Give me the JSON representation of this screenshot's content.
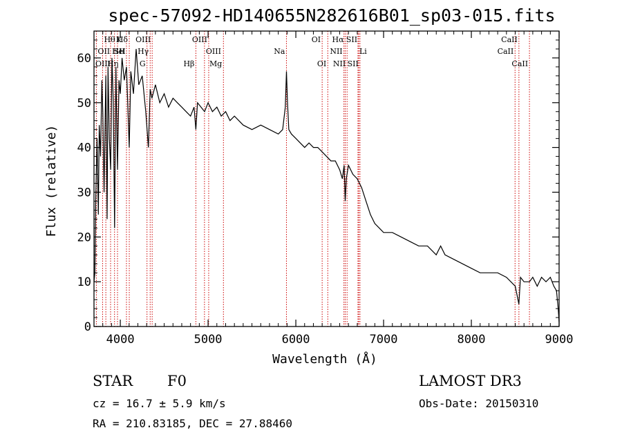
{
  "chart_data": {
    "type": "line",
    "title": "spec-57092-HD140655N282616B01_sp03-015.fits",
    "xlabel": "Wavelength (Å)",
    "ylabel": "Flux (relative)",
    "xlim": [
      3700,
      9000
    ],
    "ylim": [
      0,
      66
    ],
    "xticks": [
      4000,
      5000,
      6000,
      7000,
      8000,
      9000
    ],
    "yticks": [
      0,
      10,
      20,
      30,
      40,
      50,
      60
    ],
    "line_color": "#000000",
    "marker_color": "#cc0000",
    "series": [
      {
        "name": "Flux",
        "x": [
          3700,
          3710,
          3720,
          3735,
          3750,
          3760,
          3775,
          3790,
          3800,
          3815,
          3835,
          3850,
          3860,
          3875,
          3890,
          3905,
          3920,
          3935,
          3950,
          3968,
          3985,
          4000,
          4020,
          4045,
          4070,
          4102,
          4120,
          4150,
          4180,
          4210,
          4250,
          4290,
          4320,
          4340,
          4360,
          4400,
          4450,
          4500,
          4550,
          4600,
          4650,
          4700,
          4750,
          4800,
          4840,
          4861,
          4880,
          4920,
          4960,
          5000,
          5050,
          5100,
          5150,
          5200,
          5250,
          5300,
          5400,
          5500,
          5600,
          5700,
          5800,
          5850,
          5880,
          5893,
          5905,
          5920,
          5950,
          6000,
          6050,
          6100,
          6150,
          6200,
          6250,
          6300,
          6350,
          6400,
          6450,
          6500,
          6530,
          6550,
          6563,
          6575,
          6600,
          6650,
          6700,
          6750,
          6800,
          6850,
          6900,
          6950,
          7000,
          7100,
          7200,
          7300,
          7400,
          7500,
          7600,
          7650,
          7700,
          7800,
          7900,
          8000,
          8100,
          8200,
          8300,
          8400,
          8450,
          8500,
          8542,
          8560,
          8600,
          8662,
          8700,
          8750,
          8800,
          8850,
          8900,
          8940,
          8970,
          8990,
          9000
        ],
        "y": [
          10,
          12,
          28,
          42,
          25,
          45,
          38,
          55,
          48,
          30,
          56,
          24,
          58,
          42,
          35,
          60,
          50,
          22,
          58,
          35,
          55,
          52,
          60,
          55,
          58,
          40,
          57,
          52,
          62,
          54,
          56,
          48,
          40,
          53,
          51,
          54,
          50,
          52,
          49,
          51,
          50,
          49,
          48,
          47,
          49,
          44,
          50,
          49,
          48,
          50,
          48,
          49,
          47,
          48,
          46,
          47,
          45,
          44,
          45,
          44,
          43,
          44,
          49,
          57,
          50,
          44,
          43,
          42,
          41,
          40,
          41,
          40,
          40,
          39,
          38,
          37,
          37,
          35,
          33,
          36,
          28,
          33,
          36,
          34,
          33,
          31,
          28,
          25,
          23,
          22,
          21,
          21,
          20,
          19,
          18,
          18,
          16,
          18,
          16,
          15,
          14,
          13,
          12,
          12,
          12,
          11,
          10,
          9,
          5,
          11,
          10,
          10,
          11,
          9,
          11,
          10,
          11,
          9,
          8,
          4,
          1
        ]
      }
    ],
    "lines": [
      {
        "label": "Hθ",
        "x": 3798,
        "row": 0,
        "side": "right"
      },
      {
        "label": "OII",
        "x": 3727,
        "row": 1,
        "side": "right"
      },
      {
        "label": "OIII",
        "x": 3700,
        "row": 2,
        "side": "right"
      },
      {
        "label": "Hη",
        "x": 3835,
        "row": 2,
        "side": "right"
      },
      {
        "label": "He",
        "x": 3889,
        "row": 1,
        "side": "right"
      },
      {
        "label": "K",
        "x": 3934,
        "row": 0,
        "side": "right"
      },
      {
        "label": "H",
        "x": 3968,
        "row": 1,
        "side": "right"
      },
      {
        "label": "Hδ",
        "x": 4102,
        "row": 0,
        "side": "left"
      },
      {
        "label": "SII",
        "x": 4070,
        "row": 1,
        "side": "left"
      },
      {
        "label": "OIII",
        "x": 4363,
        "row": 0,
        "side": "left"
      },
      {
        "label": "Hγ",
        "x": 4340,
        "row": 1,
        "side": "left"
      },
      {
        "label": "G",
        "x": 4304,
        "row": 2,
        "side": "left"
      },
      {
        "label": "Hβ",
        "x": 4861,
        "row": 2,
        "side": "left"
      },
      {
        "label": "OIII",
        "x": 5007,
        "row": 0,
        "side": "left"
      },
      {
        "label": "OIII",
        "x": 4959,
        "row": 1,
        "side": "right"
      },
      {
        "label": "Mg",
        "x": 5175,
        "row": 2,
        "side": "left"
      },
      {
        "label": "Na",
        "x": 5893,
        "row": 1,
        "side": "left"
      },
      {
        "label": "OI",
        "x": 6300,
        "row": 0,
        "side": "left"
      },
      {
        "label": "OI",
        "x": 6364,
        "row": 2,
        "side": "left"
      },
      {
        "label": "Hα",
        "x": 6563,
        "row": 0,
        "side": "left"
      },
      {
        "label": "NII",
        "x": 6548,
        "row": 1,
        "side": "left"
      },
      {
        "label": "NII",
        "x": 6584,
        "row": 2,
        "side": "left"
      },
      {
        "label": "SII",
        "x": 6717,
        "row": 0,
        "side": "left"
      },
      {
        "label": "Li",
        "x": 6708,
        "row": 1,
        "side": "right"
      },
      {
        "label": "SII",
        "x": 6731,
        "row": 2,
        "side": "left"
      },
      {
        "label": "CaII",
        "x": 8542,
        "row": 0,
        "side": "left"
      },
      {
        "label": "CaII",
        "x": 8498,
        "row": 1,
        "side": "left"
      },
      {
        "label": "CaII",
        "x": 8662,
        "row": 2,
        "side": "left"
      }
    ]
  },
  "info": {
    "object_class": "STAR",
    "subclass": "F0",
    "survey": "LAMOST DR3",
    "redshift": "cz = 16.7 ± 5.9 km/s",
    "obs_date": "Obs-Date: 20150310",
    "coords": "RA = 210.83185, DEC =  27.88460"
  }
}
